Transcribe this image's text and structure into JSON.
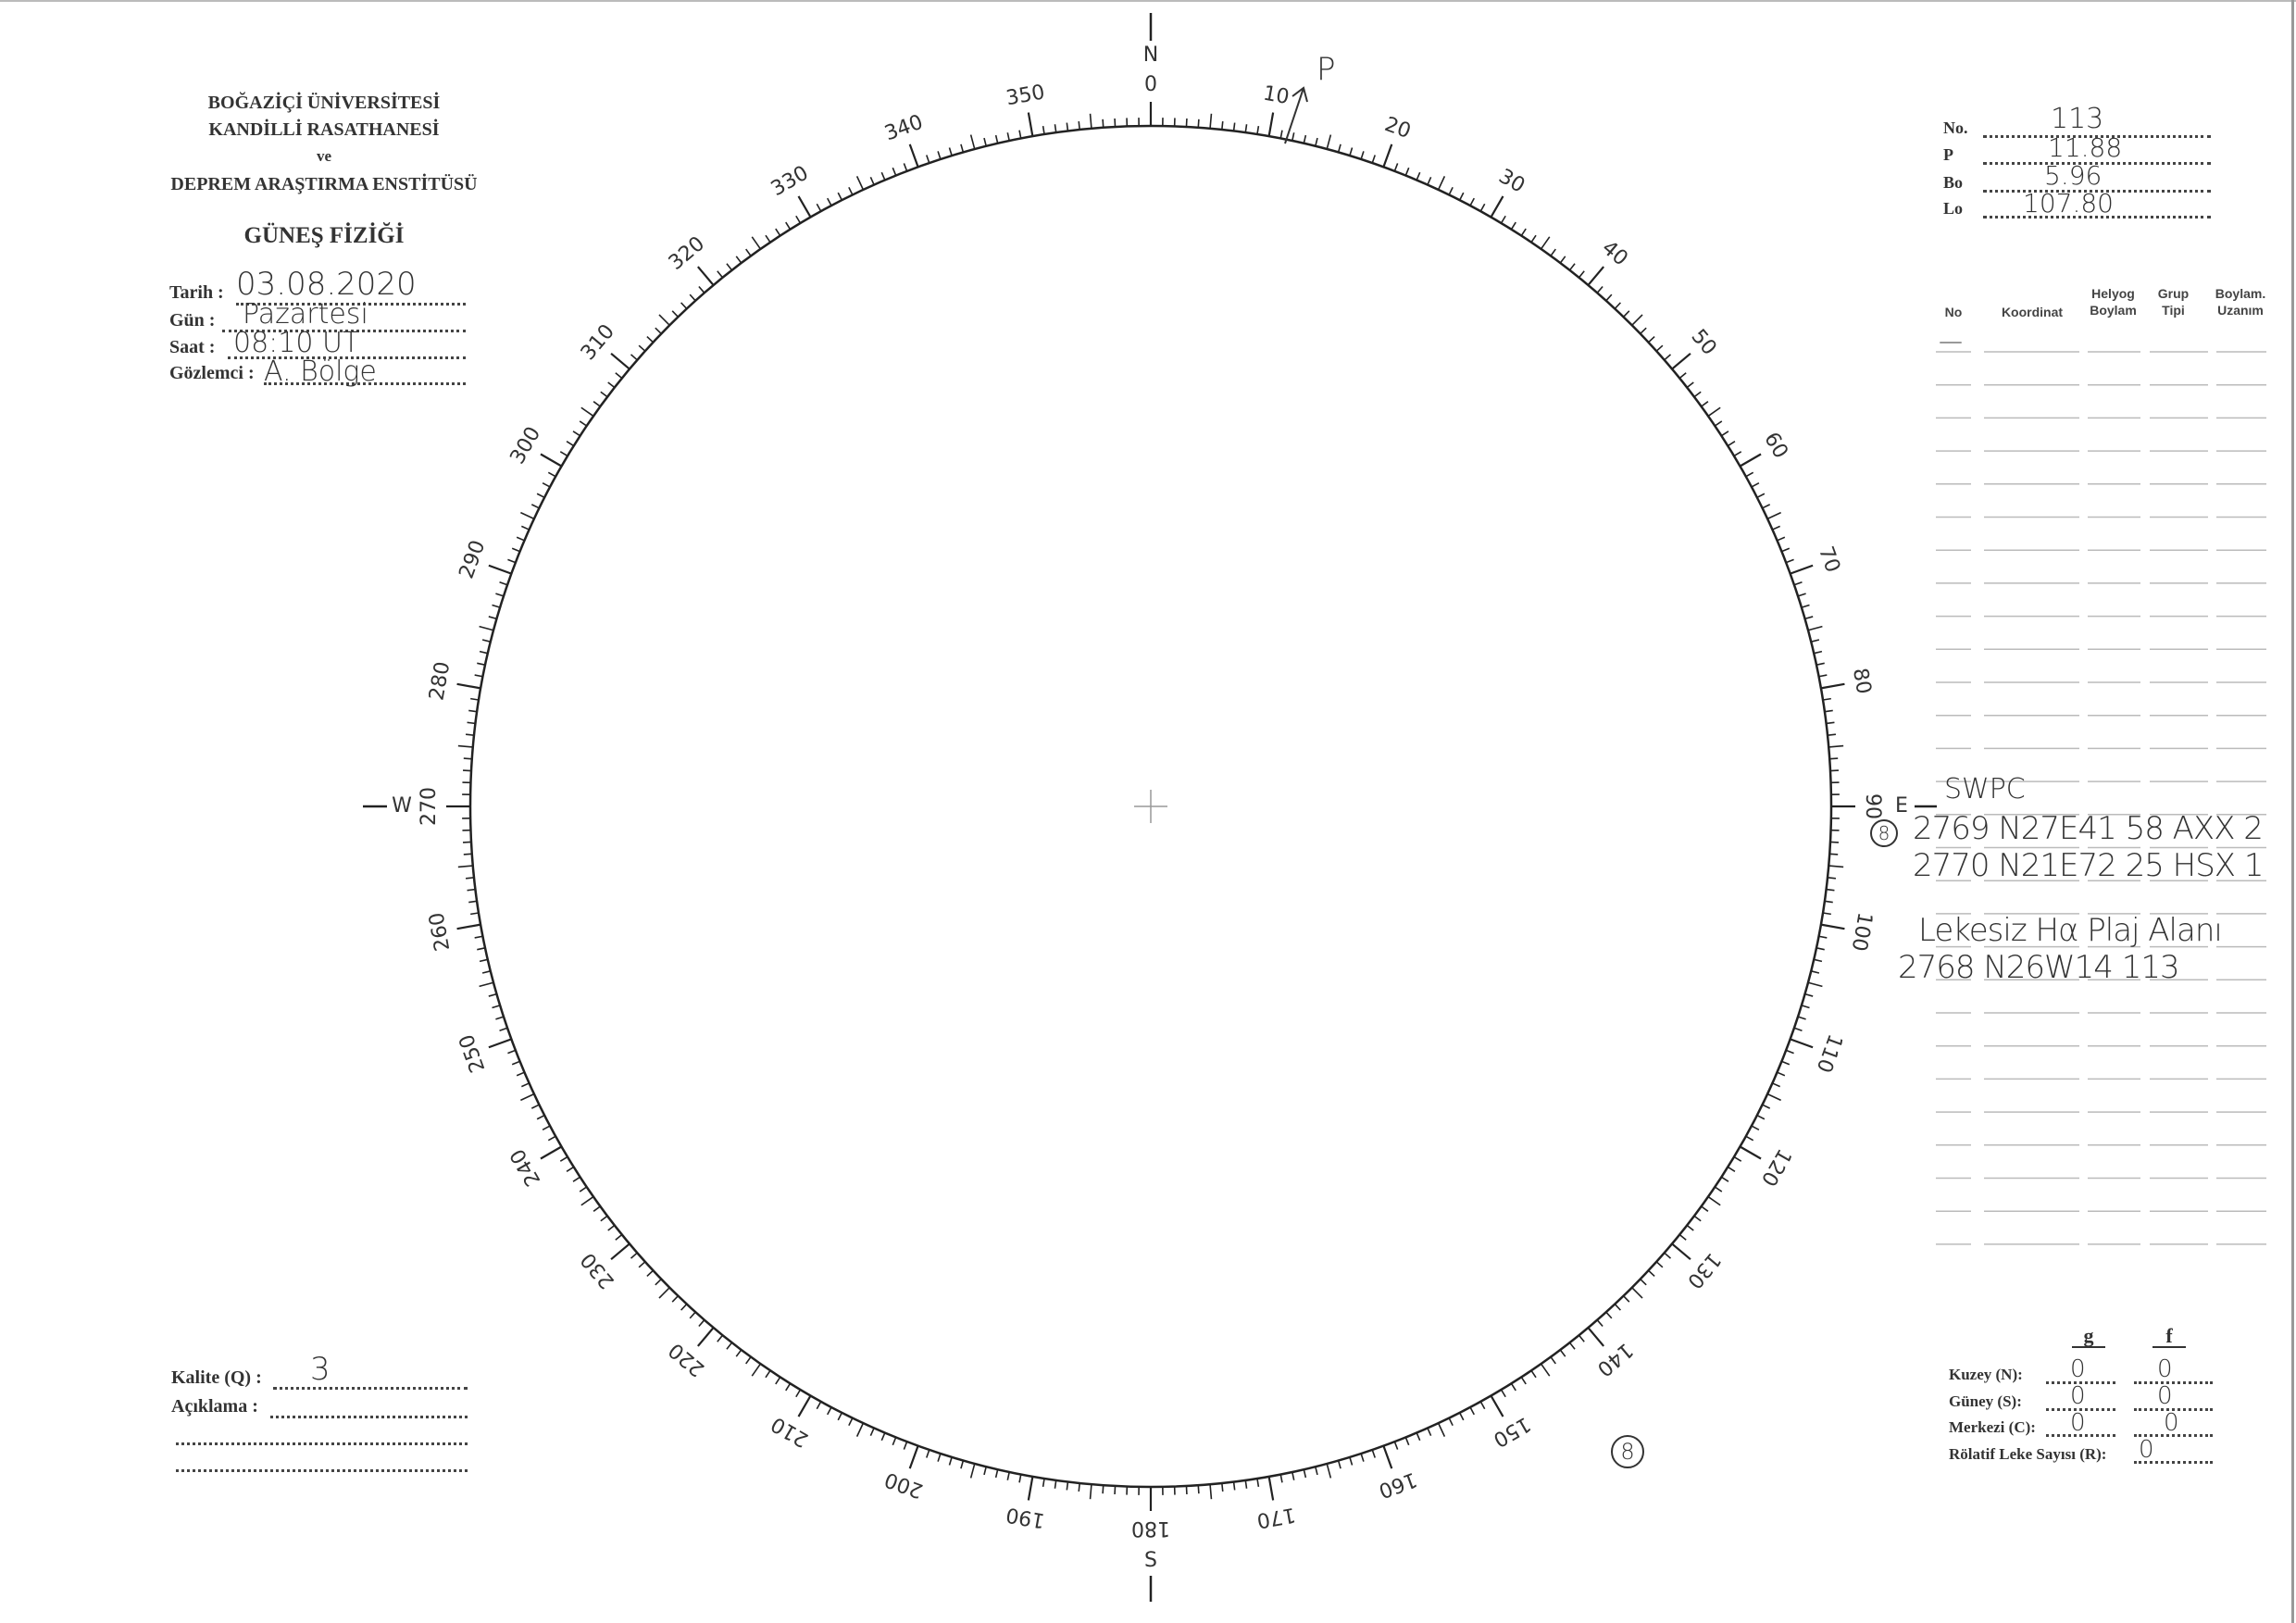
{
  "header": {
    "line1": "BOĞAZİÇİ ÜNİVERSİTESİ",
    "line2": "KANDİLLİ RASATHANESİ",
    "line3": "ve",
    "line4": "DEPREM ARAŞTIRMA ENSTİTÜSÜ",
    "title": "GÜNEŞ FİZİĞİ"
  },
  "form": {
    "date_label": "Tarih :",
    "date_value": "03.08.2020",
    "day_label": "Gün :",
    "day_value": "Pazartesi",
    "time_label": "Saat :",
    "time_value": "08:10 UT",
    "observer_label": "Gözlemci :",
    "observer_value": "A. Bölge",
    "quality_label": "Kalite (Q) :",
    "quality_value": "3",
    "remark_label": "Açıklama :"
  },
  "params": [
    {
      "label": "No.",
      "value": "113"
    },
    {
      "label": "P",
      "value": "11.88"
    },
    {
      "label": "Bo",
      "value": "5.96"
    },
    {
      "label": "Lo",
      "value": "107.80"
    }
  ],
  "table": {
    "headers": [
      "No",
      "Koordinat",
      "Helyog Boylam",
      "Grup Tipi",
      "Boylam. Uzanım"
    ],
    "first_row_mark": "—"
  },
  "notes": {
    "source": "SWPC",
    "group_count_circled": "8",
    "rows": [
      "2769 N27E41 58 AXX 2",
      "2770 N21E72 25 HSX 1"
    ],
    "plage_title": "Lekesiz Hα Plaj Alanı",
    "plage_row": "2768 N26W14 113",
    "disk_circled": "8",
    "pole_label": "P"
  },
  "counts": {
    "col_g": "g",
    "col_f": "f",
    "rows": [
      {
        "label": "Kuzey (N):",
        "g": "0",
        "f": "0"
      },
      {
        "label": "Güney (S):",
        "g": "0",
        "f": "0"
      },
      {
        "label": "Merkezi (C):",
        "g": "0",
        "f": "0"
      }
    ],
    "relative_label": "Rölatif Leke Sayısı (R):",
    "relative_value": "0"
  },
  "scale": {
    "label_step_deg": 10,
    "cardinals": {
      "north": "N",
      "east": "E",
      "south": "S",
      "west": "W"
    }
  }
}
